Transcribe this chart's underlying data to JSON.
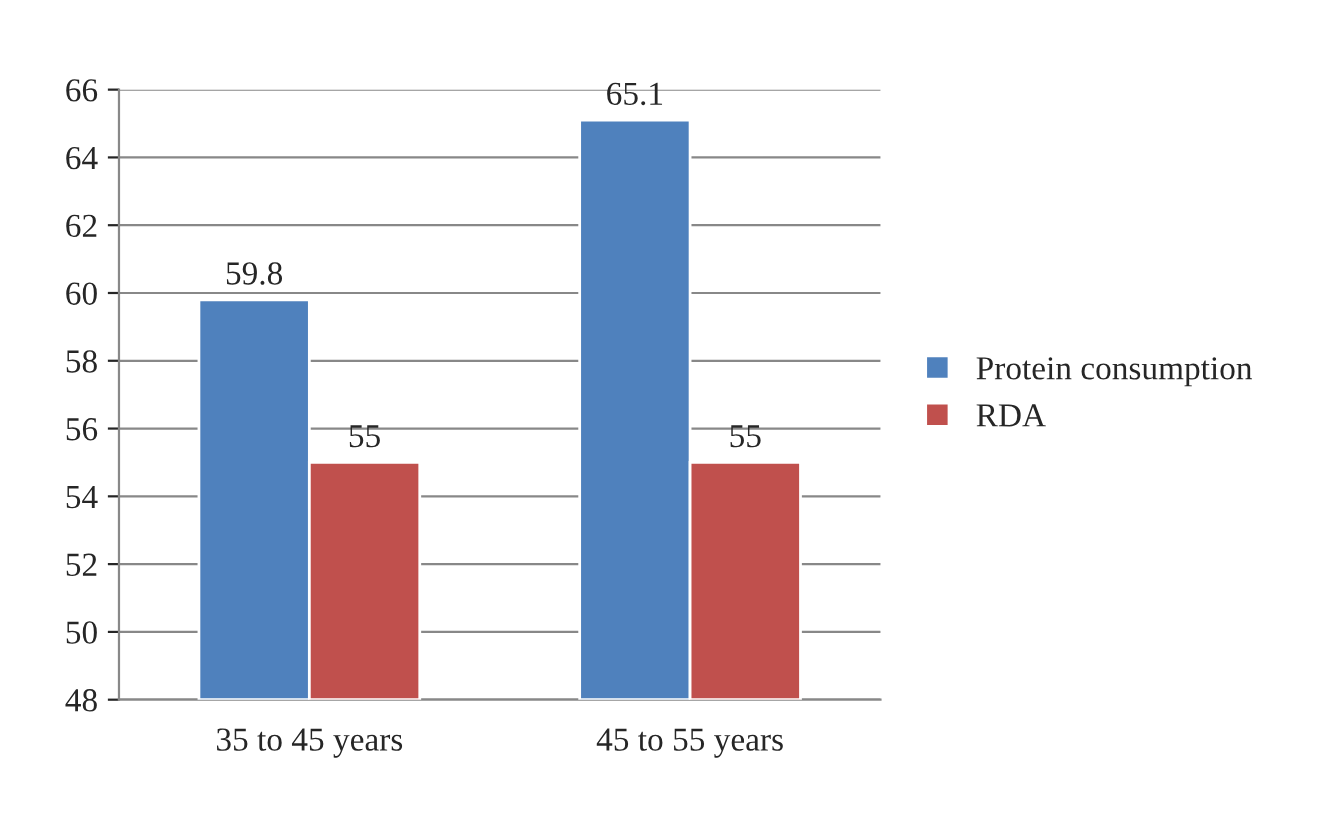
{
  "chart_data": {
    "type": "bar",
    "categories": [
      "35 to 45 years",
      "45 to 55 years"
    ],
    "series": [
      {
        "name": "Protein consumption",
        "color": "#4f81bd",
        "values": [
          59.8,
          65.1
        ]
      },
      {
        "name": "RDA",
        "color": "#c0504d",
        "values": [
          55,
          55
        ]
      }
    ],
    "ylim": [
      48,
      66
    ],
    "yticks": [
      48,
      50,
      52,
      54,
      56,
      58,
      60,
      62,
      64,
      66
    ],
    "grid": "y",
    "legend": "right",
    "data_labels": true
  }
}
